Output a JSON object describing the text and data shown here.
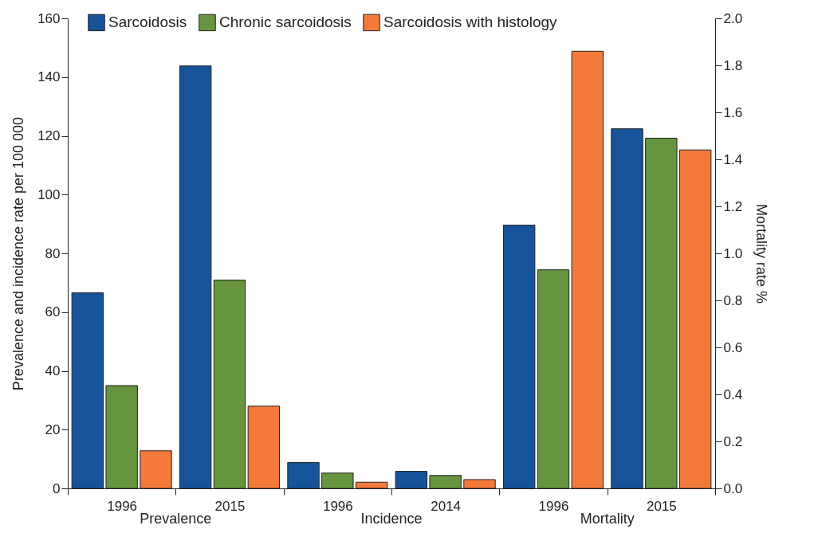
{
  "chart_data": {
    "type": "bar",
    "ylabel": "Prevalence and incidence rate per 100 000",
    "y2label": "Mortality rate %",
    "categories": [
      "1996",
      "2015",
      "1996",
      "2014",
      "1996",
      "2015"
    ],
    "series": [
      {
        "name": "Sarcoidosis",
        "color": "#16539b",
        "values": [
          66.6,
          143.8,
          8.8,
          5.8,
          null,
          null
        ]
      },
      {
        "name": "Chronic sarcoidosis",
        "color": "#67953f",
        "values": [
          35.0,
          70.9,
          5.2,
          4.4,
          null,
          null
        ]
      },
      {
        "name": "Sarcoidosis with histology",
        "color": "#f47a3b",
        "values": [
          12.8,
          28.0,
          2.1,
          3.0,
          null,
          null
        ]
      },
      {
        "color": "#16539b",
        "axis": "y2",
        "values": [
          null,
          null,
          null,
          null,
          1.12,
          1.53
        ]
      },
      {
        "color": "#67953f",
        "axis": "y2",
        "values": [
          null,
          null,
          null,
          null,
          0.93,
          1.49
        ]
      },
      {
        "color": "#f47a3b",
        "axis": "y2",
        "values": [
          null,
          null,
          null,
          null,
          1.86,
          1.44
        ]
      }
    ],
    "ylim": [
      0,
      160
    ],
    "yticks": [
      0,
      20,
      40,
      60,
      80,
      100,
      120,
      140,
      160
    ],
    "y2lim": [
      0,
      2.0
    ],
    "y2ticks": [
      {
        "value": 0,
        "label": "0.0"
      },
      {
        "value": 0.2,
        "label": "0.2"
      },
      {
        "value": 0.4,
        "label": "0.4"
      },
      {
        "value": 0.6,
        "label": "0.6"
      },
      {
        "value": 0.8,
        "label": "0.8"
      },
      {
        "value": 1.0,
        "label": "1.0"
      },
      {
        "value": 1.2,
        "label": "1.2"
      },
      {
        "value": 1.4,
        "label": "1.4"
      },
      {
        "value": 1.6,
        "label": "1.6"
      },
      {
        "value": 1.8,
        "label": "1.8"
      },
      {
        "value": 2.0,
        "label": "2.0"
      }
    ],
    "annotations": [
      "Prevalence",
      "Incidence",
      "Mortality"
    ],
    "legend": "top",
    "grid": false
  }
}
